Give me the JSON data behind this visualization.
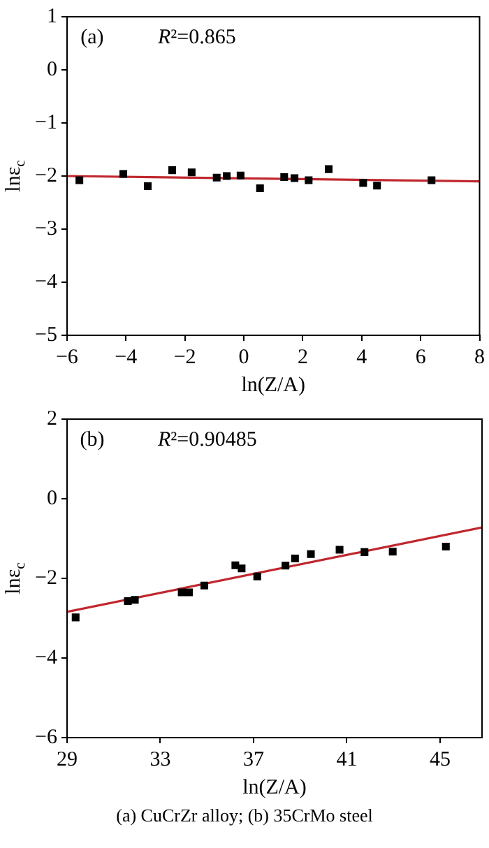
{
  "chart_data": [
    {
      "type": "scatter",
      "xlabel": "ln(Z/A)",
      "ylabel": "lnε$_{c}$",
      "annotations": [
        "(a)",
        "R²=0.865"
      ],
      "xlim": [
        -6,
        8
      ],
      "xticks": [
        -6,
        -4,
        -2,
        0,
        2,
        4,
        6,
        8
      ],
      "ylim": [
        -5,
        1
      ],
      "yticks": [
        -5,
        -4,
        -3,
        -2,
        -1,
        0,
        1
      ],
      "legend": false,
      "series": [
        {
          "marker": "square",
          "color": "#000000",
          "x": [
            -5.58,
            -4.09,
            -3.26,
            -2.43,
            -1.77,
            -0.92,
            -0.58,
            -0.11,
            0.55,
            1.37,
            1.72,
            2.2,
            2.88,
            4.05,
            4.52,
            6.37
          ],
          "values": [
            -2.08,
            -1.96,
            -2.19,
            -1.89,
            -1.93,
            -2.03,
            -2.0,
            -1.99,
            -2.23,
            -2.02,
            -2.04,
            -2.08,
            -1.87,
            -2.13,
            -2.18,
            -2.08
          ]
        },
        {
          "type": "line",
          "marker": "none",
          "color": "#c0272d",
          "x": [
            -6,
            8
          ],
          "values": [
            -2.0,
            -2.1
          ]
        }
      ]
    },
    {
      "type": "scatter",
      "xlabel": "ln(Z/A)",
      "ylabel": "lnε$_{c}$",
      "annotations": [
        "(b)",
        "R²=0.90485",
        "(a) CuCrZr alloy; (b) 35CrMo steel"
      ],
      "xlim": [
        29,
        46.8
      ],
      "xticks": [
        29,
        33,
        37,
        41,
        45
      ],
      "ylim": [
        -6,
        2
      ],
      "yticks": [
        -6,
        -4,
        -2,
        0,
        2
      ],
      "legend": false,
      "series": [
        {
          "marker": "square",
          "color": "#000000",
          "x": [
            29.37,
            31.61,
            31.91,
            33.92,
            34.23,
            34.89,
            36.22,
            36.49,
            37.16,
            38.37,
            38.78,
            39.46,
            40.69,
            41.76,
            42.97,
            45.25
          ],
          "values": [
            -2.98,
            -2.57,
            -2.54,
            -2.35,
            -2.35,
            -2.18,
            -1.67,
            -1.75,
            -1.95,
            -1.68,
            -1.5,
            -1.39,
            -1.28,
            -1.34,
            -1.33,
            -1.2
          ]
        },
        {
          "type": "line",
          "marker": "none",
          "color": "#c0272d",
          "x": [
            29,
            46.8
          ],
          "values": [
            -2.84,
            -0.72
          ]
        }
      ]
    }
  ]
}
